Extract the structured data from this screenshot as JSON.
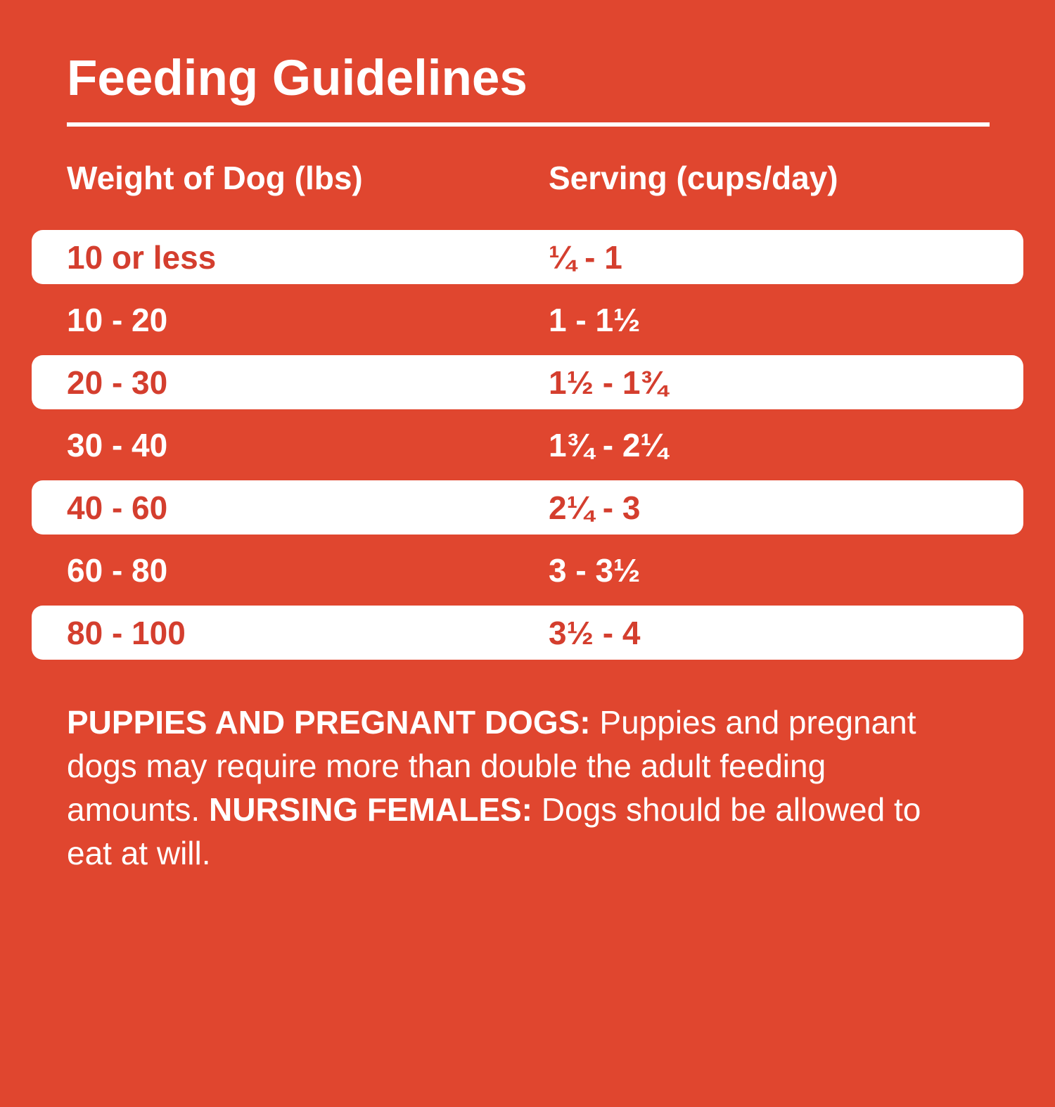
{
  "page": {
    "title": "Feeding Guidelines",
    "colors": {
      "background": "#E0462F",
      "row_text_red": "#D43E2E",
      "text_white": "#FFFFFF"
    }
  },
  "table": {
    "columns": [
      "Weight of Dog (lbs)",
      "Serving (cups/day)"
    ],
    "rows": [
      {
        "weight": "10 or less",
        "serving": "¼ - 1"
      },
      {
        "weight": "10 - 20",
        "serving": "1 - 1½"
      },
      {
        "weight": "20 - 30",
        "serving": "1½ - 1¾"
      },
      {
        "weight": "30 - 40",
        "serving": "1¾ - 2¼"
      },
      {
        "weight": "40 - 60",
        "serving": "2¼ - 3"
      },
      {
        "weight": "60 - 80",
        "serving": "3 - 3½"
      },
      {
        "weight": "80 - 100",
        "serving": "3½ - 4"
      }
    ]
  },
  "footer": {
    "bold1": "PUPPIES AND PREGNANT DOGS:",
    "text1": " Puppies and pregnant dogs may require more than double the adult feeding amounts. ",
    "bold2": "NURSING FEMALES:",
    "text2": " Dogs should be allowed to eat at will."
  }
}
